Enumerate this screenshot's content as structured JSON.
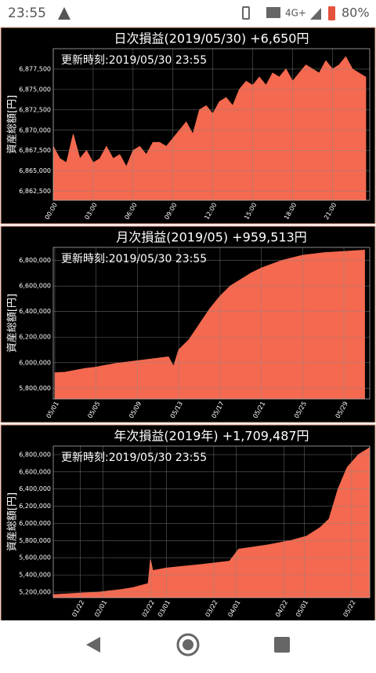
{
  "status_bar": {
    "time": "23:55",
    "network": "4G+",
    "battery": "80%"
  },
  "chart_data": [
    {
      "type": "area",
      "title": "日次損益(2019/05/30) +6,650円",
      "annotation": "更新時刻:2019/05/30 23:55",
      "ylabel": "資産総額[円]",
      "color": "#f4694f",
      "grid": true,
      "x": [
        0,
        0.5,
        1,
        1.5,
        2,
        2.5,
        3,
        3.5,
        4,
        4.5,
        5,
        5.5,
        6,
        6.5,
        7,
        7.5,
        8,
        8.5,
        9,
        9.5,
        10,
        10.5,
        11,
        11.5,
        12,
        12.5,
        13,
        13.5,
        14,
        14.5,
        15,
        15.5,
        16,
        16.5,
        17,
        17.5,
        18,
        18.5,
        19,
        19.5,
        20,
        20.5,
        21,
        21.5,
        22,
        22.5,
        23,
        23.5
      ],
      "values": [
        6868000,
        6866500,
        6866000,
        6869500,
        6866500,
        6867500,
        6866000,
        6866500,
        6868000,
        6866500,
        6867000,
        6865500,
        6867500,
        6868000,
        6867000,
        6868500,
        6868500,
        6868000,
        6869000,
        6870000,
        6871000,
        6869500,
        6872500,
        6873000,
        6872000,
        6873500,
        6874000,
        6873000,
        6875000,
        6876000,
        6875500,
        6876500,
        6875500,
        6877000,
        6876500,
        6877500,
        6876000,
        6877000,
        6878000,
        6877500,
        6877000,
        6878500,
        6877500,
        6878000,
        6879000,
        6877500,
        6877000,
        6876500
      ],
      "xlim": [
        0,
        23.8
      ],
      "ylim": [
        6861400,
        6880000
      ],
      "xticks": [
        {
          "value": 0,
          "label": "00:00"
        },
        {
          "value": 3,
          "label": "03:00"
        },
        {
          "value": 6,
          "label": "06:00"
        },
        {
          "value": 9,
          "label": "09:00"
        },
        {
          "value": 12,
          "label": "12:00"
        },
        {
          "value": 15,
          "label": "15:00"
        },
        {
          "value": 18,
          "label": "18:00"
        },
        {
          "value": 21,
          "label": "21:00"
        }
      ],
      "yticks": [
        {
          "value": 6862500,
          "label": "6,862,500"
        },
        {
          "value": 6865000,
          "label": "6,865,000"
        },
        {
          "value": 6867500,
          "label": "6,867,500"
        },
        {
          "value": 6870000,
          "label": "6,870,000"
        },
        {
          "value": 6872500,
          "label": "6,872,500"
        },
        {
          "value": 6875000,
          "label": "6,875,000"
        },
        {
          "value": 6877500,
          "label": "6,877,500"
        }
      ]
    },
    {
      "type": "area",
      "title": "月次損益(2019/05) +959,513円",
      "annotation": "更新時刻:2019/05/30 23:55",
      "ylabel": "資産総額[円]",
      "color": "#f4694f",
      "grid": true,
      "x": [
        1,
        2,
        3,
        4,
        5,
        6,
        7,
        8,
        9,
        10,
        11,
        12,
        12.5,
        13,
        14,
        15,
        16,
        17,
        18,
        19,
        20,
        21,
        22,
        23,
        24,
        25,
        26,
        27,
        28,
        29,
        30,
        31
      ],
      "values": [
        5920000,
        5925000,
        5940000,
        5955000,
        5965000,
        5980000,
        5995000,
        6005000,
        6015000,
        6025000,
        6035000,
        6045000,
        5970000,
        6100000,
        6180000,
        6300000,
        6420000,
        6520000,
        6600000,
        6650000,
        6700000,
        6740000,
        6770000,
        6800000,
        6820000,
        6840000,
        6850000,
        6860000,
        6865000,
        6870000,
        6875000,
        6880000
      ],
      "xlim": [
        0.85,
        31.5
      ],
      "ylim": [
        5716000,
        6902000
      ],
      "xticks": [
        {
          "value": 1,
          "label": "05/01"
        },
        {
          "value": 5,
          "label": "05/05"
        },
        {
          "value": 9,
          "label": "05/09"
        },
        {
          "value": 13,
          "label": "05/13"
        },
        {
          "value": 17,
          "label": "05/17"
        },
        {
          "value": 21,
          "label": "05/21"
        },
        {
          "value": 25,
          "label": "05/25"
        },
        {
          "value": 29,
          "label": "05/29"
        }
      ],
      "yticks": [
        {
          "value": 5800000,
          "label": "5,800,000"
        },
        {
          "value": 6000000,
          "label": "6,000,000"
        },
        {
          "value": 6200000,
          "label": "6,200,000"
        },
        {
          "value": 6400000,
          "label": "6,400,000"
        },
        {
          "value": 6600000,
          "label": "6,600,000"
        },
        {
          "value": 6800000,
          "label": "6,800,000"
        }
      ]
    },
    {
      "type": "area",
      "title": "年次損益(2019年) +1,709,487円",
      "annotation": "更新時刻:2019/05/30 23:55",
      "ylabel": "資産総額[円]",
      "color": "#f4694f",
      "grid": true,
      "x": [
        10,
        20,
        30,
        40,
        45,
        52,
        53,
        54,
        60,
        75,
        88,
        92,
        105,
        115,
        122,
        128,
        132,
        136,
        140,
        145,
        150
      ],
      "values": [
        5170000,
        5185000,
        5200000,
        5230000,
        5250000,
        5300000,
        5580000,
        5450000,
        5480000,
        5520000,
        5560000,
        5700000,
        5750000,
        5800000,
        5850000,
        5950000,
        6050000,
        6400000,
        6650000,
        6800000,
        6880000
      ],
      "xlim": [
        10,
        150
      ],
      "ylim": [
        5136000,
        6900000
      ],
      "xticks": [
        {
          "value": 22,
          "label": "01/22"
        },
        {
          "value": 32,
          "label": "02/01"
        },
        {
          "value": 53,
          "label": "02/22"
        },
        {
          "value": 60,
          "label": "03/01"
        },
        {
          "value": 81,
          "label": "03/22"
        },
        {
          "value": 91,
          "label": "04/01"
        },
        {
          "value": 112,
          "label": "04/22"
        },
        {
          "value": 121,
          "label": "05/01"
        },
        {
          "value": 142,
          "label": "05/22"
        }
      ],
      "yticks": [
        {
          "value": 5200000,
          "label": "5,200,000"
        },
        {
          "value": 5400000,
          "label": "5,400,000"
        },
        {
          "value": 5600000,
          "label": "5,600,000"
        },
        {
          "value": 5800000,
          "label": "5,800,000"
        },
        {
          "value": 6000000,
          "label": "6,000,000"
        },
        {
          "value": 6200000,
          "label": "6,200,000"
        },
        {
          "value": 6400000,
          "label": "6,400,000"
        },
        {
          "value": 6600000,
          "label": "6,600,000"
        },
        {
          "value": 6800000,
          "label": "6,800,000"
        }
      ]
    }
  ]
}
